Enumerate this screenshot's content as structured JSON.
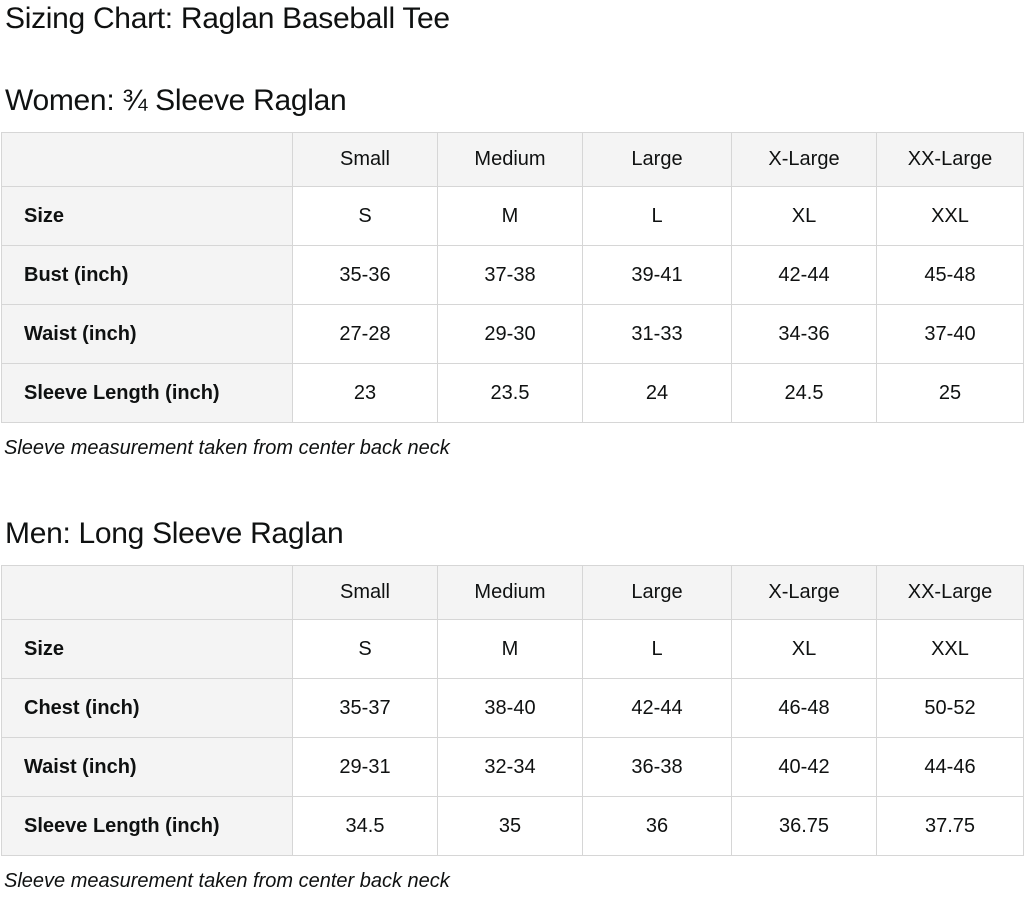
{
  "page": {
    "title": "Sizing Chart: Raglan Baseball Tee"
  },
  "colors": {
    "text": "#0f1111",
    "table_header_bg": "#f4f4f4",
    "table_border": "#d6d6d6",
    "cell_bg": "#ffffff"
  },
  "sections": [
    {
      "heading": "Women: ¾ Sleeve Raglan",
      "columns": [
        "Small",
        "Medium",
        "Large",
        "X-Large",
        "XX-Large"
      ],
      "rows": [
        {
          "label": "Size",
          "values": [
            "S",
            "M",
            "L",
            "XL",
            "XXL"
          ]
        },
        {
          "label": "Bust (inch)",
          "values": [
            "35-36",
            "37-38",
            "39-41",
            "42-44",
            "45-48"
          ]
        },
        {
          "label": "Waist (inch)",
          "values": [
            "27-28",
            "29-30",
            "31-33",
            "34-36",
            "37-40"
          ]
        },
        {
          "label": "Sleeve Length (inch)",
          "values": [
            "23",
            "23.5",
            "24",
            "24.5",
            "25"
          ]
        }
      ],
      "note": "Sleeve measurement taken from center back neck"
    },
    {
      "heading": "Men: Long Sleeve Raglan",
      "columns": [
        "Small",
        "Medium",
        "Large",
        "X-Large",
        "XX-Large"
      ],
      "rows": [
        {
          "label": "Size",
          "values": [
            "S",
            "M",
            "L",
            "XL",
            "XXL"
          ]
        },
        {
          "label": "Chest (inch)",
          "values": [
            "35-37",
            "38-40",
            "42-44",
            "46-48",
            "50-52"
          ]
        },
        {
          "label": "Waist (inch)",
          "values": [
            "29-31",
            "32-34",
            "36-38",
            "40-42",
            "44-46"
          ]
        },
        {
          "label": "Sleeve Length (inch)",
          "values": [
            "34.5",
            "35",
            "36",
            "36.75",
            "37.75"
          ]
        }
      ],
      "note": "Sleeve measurement taken from center back neck"
    }
  ]
}
